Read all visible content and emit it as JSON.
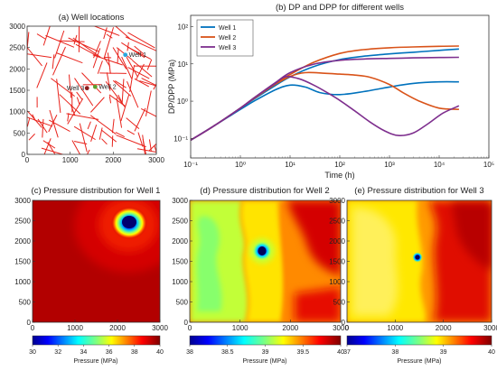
{
  "chart_data": [
    {
      "type": "scatter",
      "title": "(a) Well locations",
      "xlim": [
        0,
        3000
      ],
      "ylim": [
        0,
        3000
      ],
      "x_ticks": [
        0,
        1000,
        2000,
        3000
      ],
      "y_ticks": [
        0,
        500,
        1000,
        1500,
        2000,
        2500,
        3000
      ],
      "wells": [
        {
          "name": "Well 1",
          "x": 2280,
          "y": 2330,
          "color": "#2aa7df"
        },
        {
          "name": "Well 2",
          "x": 1580,
          "y": 1580,
          "color": "#5aa02c"
        },
        {
          "name": "Well 3",
          "x": 1390,
          "y": 1550,
          "color": "#8b1a1a"
        }
      ],
      "fracture_color": "#e8231c"
    },
    {
      "type": "line",
      "title": "(b) DP and DPP for different wells",
      "xlabel": "Time (h)",
      "ylabel": "DP/DPP (MPa)",
      "xscale": "log",
      "yscale": "log",
      "xlim": [
        0.1,
        100000
      ],
      "ylim": [
        0.03,
        200
      ],
      "x_ticks": [
        "10⁻¹",
        "10⁰",
        "10¹",
        "10²",
        "10³",
        "10⁴",
        "10⁵"
      ],
      "y_ticks": [
        "10⁻¹",
        "10⁰",
        "10¹",
        "10²"
      ],
      "legend": "top-left",
      "series": [
        {
          "name": "Well 1",
          "color": "#0072bd",
          "dp": {
            "x": [
              0.1,
              0.3,
              1,
              2,
              5,
              10,
              30,
              100,
              300,
              1000,
              3000,
              10000,
              25000
            ],
            "y": [
              0.09,
              0.22,
              0.65,
              1.2,
              2.6,
              4.5,
              8.5,
              13,
              16,
              18.5,
              20.5,
              23,
              25
            ]
          },
          "dpp": {
            "x": [
              0.1,
              0.3,
              1,
              2,
              5,
              10,
              20,
              40,
              100,
              300,
              1000,
              3000,
              10000,
              25000
            ],
            "y": [
              0.09,
              0.22,
              0.6,
              1.05,
              2.0,
              2.7,
              2.4,
              1.7,
              1.5,
              1.8,
              2.4,
              3.0,
              3.3,
              3.3
            ]
          }
        },
        {
          "name": "Well 2",
          "color": "#d95319",
          "dp": {
            "x": [
              0.1,
              0.3,
              1,
              2,
              5,
              10,
              30,
              100,
              300,
              1000,
              3000,
              10000,
              25000
            ],
            "y": [
              0.09,
              0.22,
              0.65,
              1.3,
              3.0,
              5.2,
              11,
              19,
              24,
              27,
              28.5,
              29.5,
              30
            ]
          },
          "dpp": {
            "x": [
              0.1,
              0.3,
              1,
              2,
              5,
              10,
              20,
              50,
              100,
              200,
              400,
              1000,
              2000,
              4000,
              10000,
              25000
            ],
            "y": [
              0.09,
              0.22,
              0.65,
              1.25,
              2.8,
              4.6,
              5.8,
              5.6,
              5.3,
              5.0,
              4.4,
              2.8,
              1.6,
              1.0,
              0.65,
              0.6
            ]
          }
        },
        {
          "name": "Well 3",
          "color": "#7e2f8e",
          "dp": {
            "x": [
              0.1,
              0.3,
              1,
              2,
              5,
              10,
              30,
              100,
              300,
              1000,
              3000,
              10000,
              25000
            ],
            "y": [
              0.09,
              0.22,
              0.65,
              1.3,
              3.1,
              5.8,
              9.8,
              12.5,
              13.5,
              14,
              14.5,
              14.8,
              15
            ]
          },
          "dpp": {
            "x": [
              0.1,
              0.3,
              1,
              2,
              5,
              8,
              15,
              30,
              60,
              100,
              200,
              400,
              800,
              1500,
              3000,
              6000,
              12000,
              25000
            ],
            "y": [
              0.09,
              0.22,
              0.65,
              1.3,
              3.0,
              4.5,
              4.0,
              2.7,
              1.6,
              1.05,
              0.55,
              0.28,
              0.16,
              0.12,
              0.14,
              0.25,
              0.48,
              0.75
            ]
          }
        }
      ]
    },
    {
      "type": "heatmap",
      "title": "(c) Pressure distribution for Well 1",
      "xlim": [
        0,
        3000
      ],
      "ylim": [
        0,
        3000
      ],
      "x_ticks": [
        0,
        1000,
        2000,
        3000
      ],
      "y_ticks": [
        0,
        500,
        1000,
        1500,
        2000,
        2500,
        3000
      ],
      "colorbar_label": "Pressure (MPa)",
      "colorbar_range": [
        30,
        40
      ],
      "colorbar_ticks": [
        "30",
        "32",
        "34",
        "36",
        "38",
        "40"
      ],
      "colormap": "jet",
      "min_location": {
        "x": 2280,
        "y": 2330
      }
    },
    {
      "type": "heatmap",
      "title": "(d) Pressure distribution for Well 2",
      "xlim": [
        0,
        3000
      ],
      "ylim": [
        0,
        3000
      ],
      "x_ticks": [
        0,
        1000,
        2000,
        3000
      ],
      "y_ticks": [
        0,
        500,
        1000,
        1500,
        2000,
        2500,
        3000
      ],
      "colorbar_label": "Pressure (MPa)",
      "colorbar_range": [
        38,
        40
      ],
      "colorbar_ticks": [
        "38",
        "38.5",
        "39",
        "39.5",
        "40"
      ],
      "colormap": "jet",
      "min_location": {
        "x": 1580,
        "y": 1580
      }
    },
    {
      "type": "heatmap",
      "title": "(e) Pressure distribution for Well 3",
      "xlim": [
        0,
        3000
      ],
      "ylim": [
        0,
        3000
      ],
      "x_ticks": [
        0,
        1000,
        2000,
        3000
      ],
      "y_ticks": [
        0,
        500,
        1000,
        1500,
        2000,
        2500,
        3000
      ],
      "colorbar_label": "Pressure (MPa)",
      "colorbar_range": [
        37,
        40
      ],
      "colorbar_ticks": [
        "37",
        "38",
        "39",
        "40"
      ],
      "colormap": "jet",
      "min_location": {
        "x": 1520,
        "y": 1520
      }
    }
  ]
}
